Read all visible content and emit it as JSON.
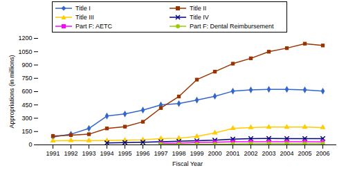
{
  "chart_data": {
    "type": "line",
    "xlabel": "Fiscal Year",
    "ylabel": "Appropriations (in millions)",
    "categories": [
      "1991",
      "1992",
      "1993",
      "1994",
      "1995",
      "1996",
      "1997",
      "1998",
      "1999",
      "2000",
      "2001",
      "2002",
      "2003",
      "2004",
      "2005",
      "2006"
    ],
    "series": [
      {
        "name": "Title I",
        "color": "#3366cc",
        "marker": "diamond",
        "values": [
          88,
          120,
          185,
          325,
          348,
          392,
          450,
          465,
          505,
          548,
          605,
          620,
          625,
          625,
          620,
          605
        ]
      },
      {
        "name": "Title II",
        "color": "#993300",
        "marker": "square",
        "values": [
          100,
          110,
          120,
          185,
          205,
          260,
          415,
          545,
          735,
          825,
          915,
          975,
          1050,
          1090,
          1140,
          1120
        ]
      },
      {
        "name": "Title III",
        "color": "#ffcc00",
        "marker": "triangle",
        "values": [
          45,
          49,
          47,
          48,
          52,
          56,
          70,
          75,
          95,
          135,
          185,
          195,
          200,
          200,
          200,
          195
        ]
      },
      {
        "name": "Title IV",
        "color": "#000080",
        "marker": "times",
        "values": [
          null,
          null,
          null,
          22,
          26,
          29,
          36,
          40,
          46,
          52,
          65,
          70,
          72,
          71,
          71,
          71
        ]
      },
      {
        "name": "Part F: AETC",
        "color": "#ff00ff",
        "marker": "square",
        "values": [
          null,
          null,
          null,
          null,
          null,
          null,
          17,
          20,
          27,
          30,
          35,
          35,
          35,
          35,
          35,
          34
        ]
      },
      {
        "name": "Part F: Dental Reimbursement",
        "color": "#99cc00",
        "marker": "circle",
        "values": [
          null,
          null,
          null,
          null,
          null,
          null,
          8,
          8,
          8,
          8,
          10,
          13,
          13,
          13,
          13,
          13
        ]
      }
    ],
    "ylim": [
      0,
      1200
    ],
    "yticks": [
      0,
      150,
      300,
      450,
      600,
      750,
      900,
      1050,
      1200
    ],
    "grid": false,
    "legend": "top"
  }
}
